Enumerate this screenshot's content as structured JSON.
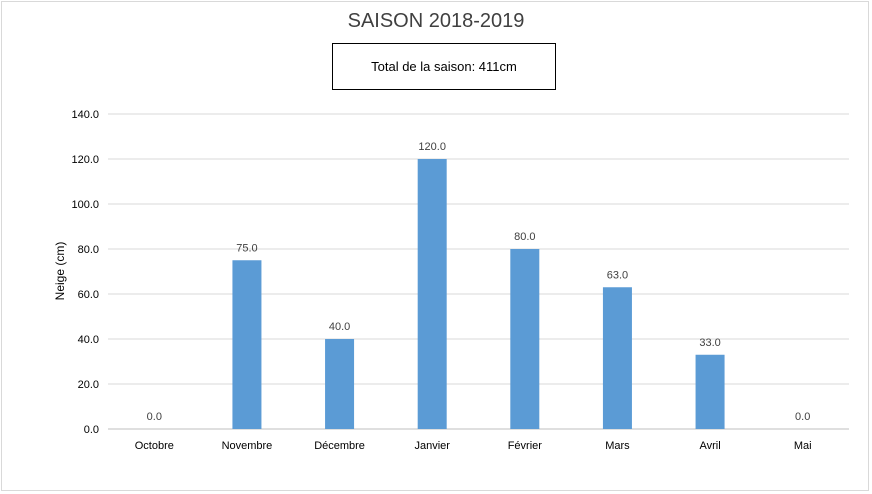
{
  "chart_data": {
    "type": "bar",
    "title": "SAISON 2018-2019",
    "annotation": "Total de la saison: 411cm",
    "xlabel": "",
    "ylabel": "Neige (cm)",
    "ylim": [
      0,
      140
    ],
    "yticks": [
      "0.0",
      "20.0",
      "40.0",
      "60.0",
      "80.0",
      "100.0",
      "120.0",
      "140.0"
    ],
    "categories": [
      "Octobre",
      "Novembre",
      "Décembre",
      "Janvier",
      "Février",
      "Mars",
      "Avril",
      "Mai"
    ],
    "values": [
      0,
      75,
      40,
      120,
      80,
      63,
      33,
      0
    ],
    "data_labels": [
      "0.0",
      "75.0",
      "40.0",
      "120.0",
      "80.0",
      "63.0",
      "33.0",
      "0.0"
    ],
    "bar_color": "#5b9bd5",
    "grid": true,
    "legend": "none"
  }
}
